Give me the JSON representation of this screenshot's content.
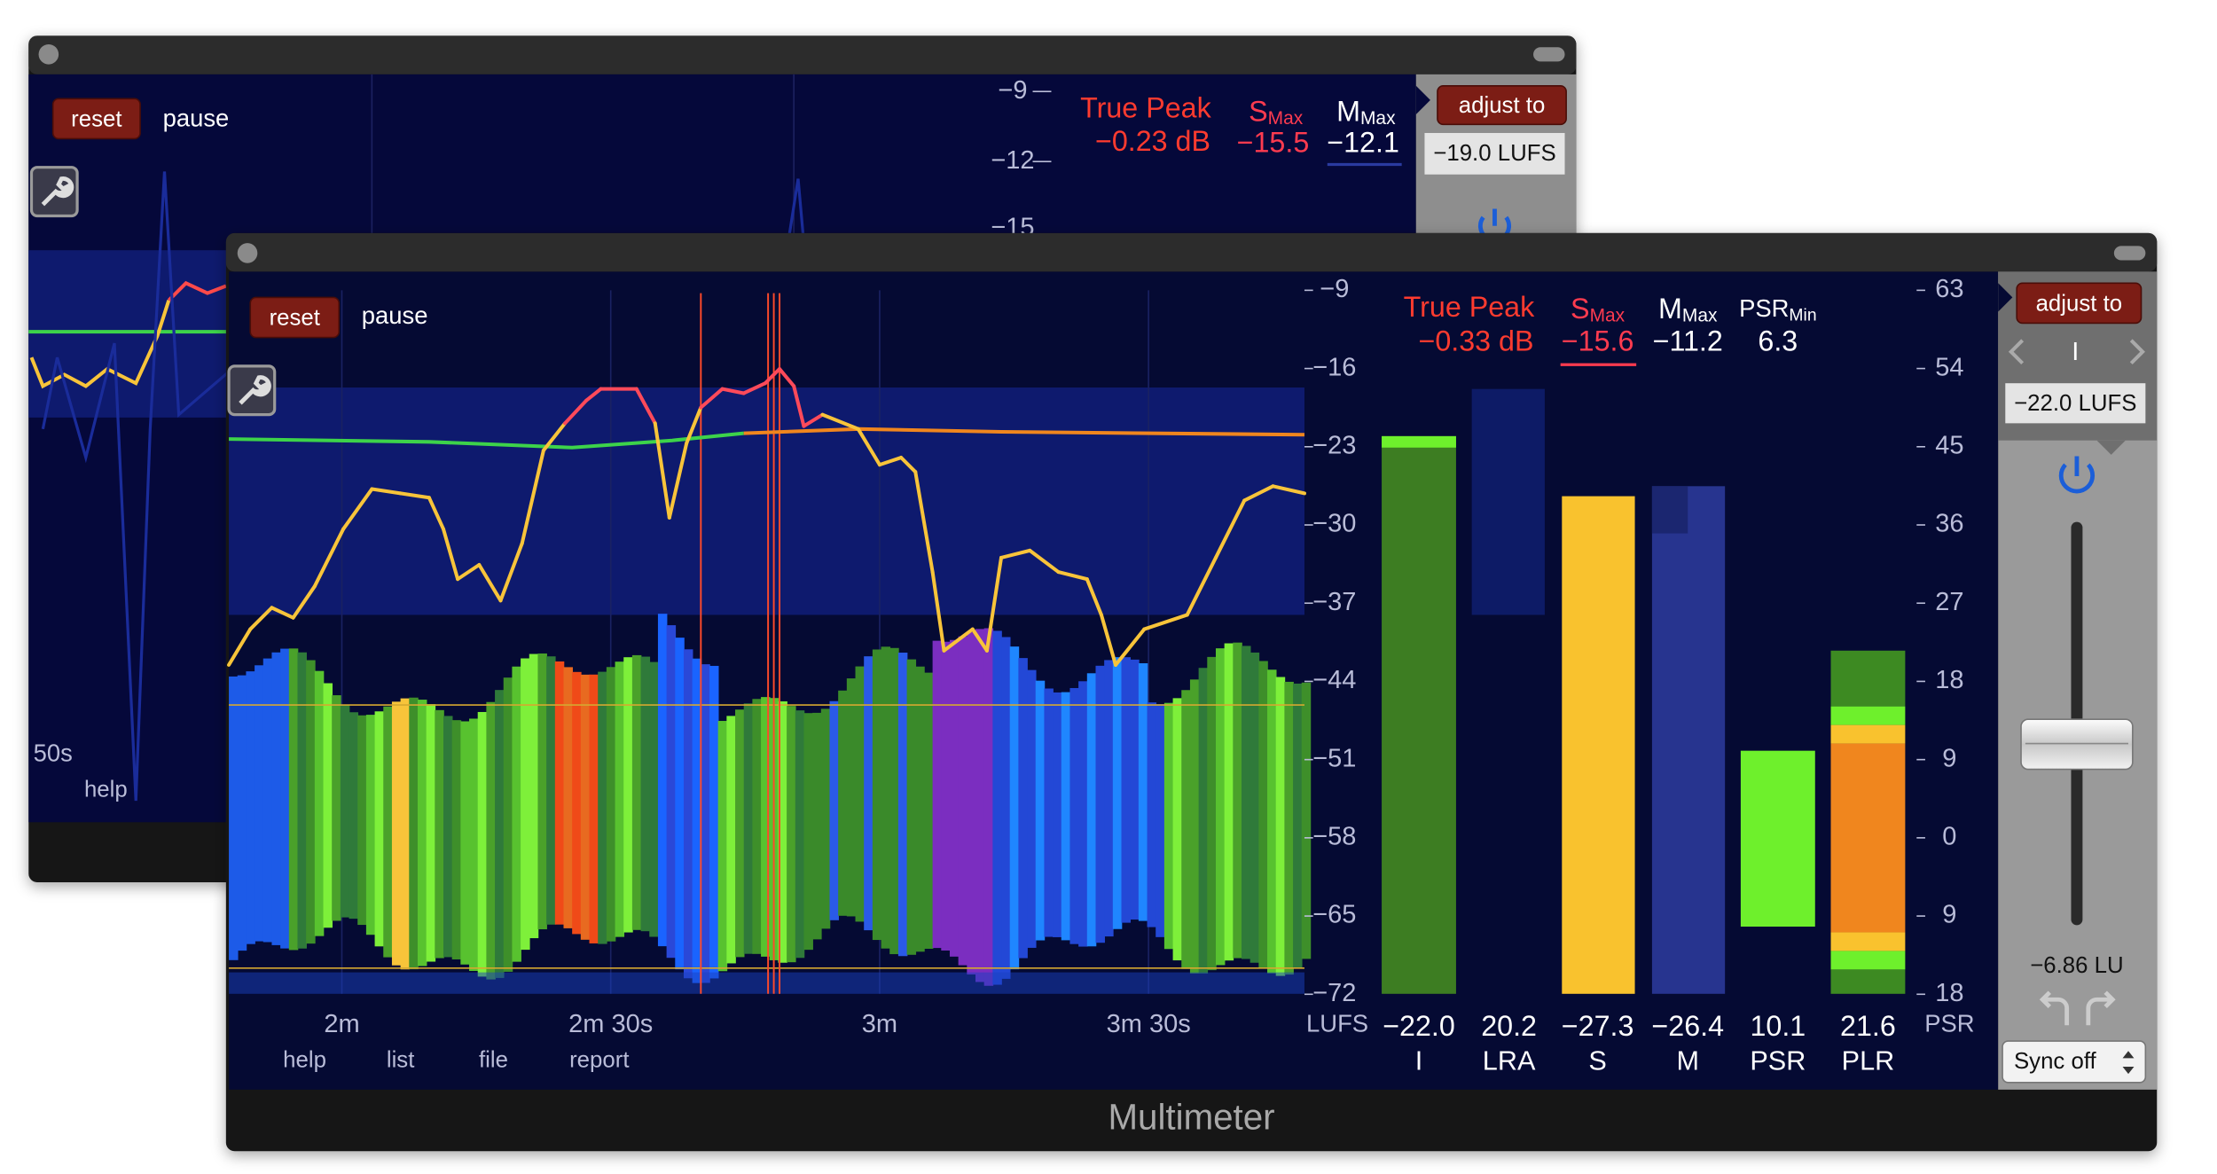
{
  "back_window": {
    "buttons": {
      "reset": "reset",
      "pause": "pause"
    },
    "scale": [
      "−9",
      "−12",
      "−15"
    ],
    "true_peak": {
      "label": "True Peak",
      "value": "−0.23 dB"
    },
    "short_term_max": {
      "label": "S",
      "sub": "Max",
      "value": "−15.5"
    },
    "momentary_max": {
      "label": "M",
      "sub": "Max",
      "value": "−12.1"
    },
    "adjust_button": "adjust to",
    "target": "−19.0 LUFS",
    "time_label": "50s",
    "menu": [
      "help"
    ]
  },
  "front_window": {
    "buttons": {
      "reset": "reset",
      "pause": "pause"
    },
    "true_peak": {
      "label": "True Peak",
      "value": "−0.33 dB"
    },
    "short_term_max": {
      "label": "S",
      "sub": "Max",
      "value": "−15.6"
    },
    "momentary_max": {
      "label": "M",
      "sub": "Max",
      "value": "−11.2"
    },
    "psr_min": {
      "label": "PSR",
      "sub": "Min",
      "value": "6.3"
    },
    "left_scale": [
      "−9",
      "−16",
      "−23",
      "−30",
      "−37",
      "−44",
      "−51",
      "−58",
      "−65",
      "−72"
    ],
    "left_unit": "LUFS",
    "right_scale": [
      "63",
      "54",
      "45",
      "36",
      "27",
      "18",
      "9",
      "0",
      "9",
      "18"
    ],
    "right_unit": "PSR",
    "time_labels": [
      "2m",
      "2m 30s",
      "3m",
      "3m 30s"
    ],
    "menu": [
      "help",
      "list",
      "file",
      "report"
    ],
    "meters": [
      {
        "value": "−22.0",
        "label": "I"
      },
      {
        "value": "20.2",
        "label": "LRA"
      },
      {
        "value": "−27.3",
        "label": "S"
      },
      {
        "value": "−26.4",
        "label": "M"
      },
      {
        "value": "10.1",
        "label": "PSR"
      },
      {
        "value": "21.6",
        "label": "PLR"
      }
    ],
    "adjust_button": "adjust to",
    "mode": "I",
    "target": "−22.0 LUFS",
    "gain": "−6.86 LU",
    "sync": "Sync off",
    "title": "Multimeter"
  }
}
